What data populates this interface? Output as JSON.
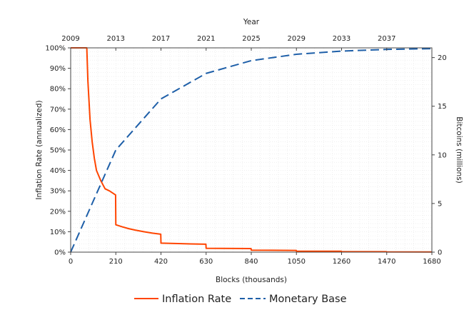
{
  "chart_data": {
    "type": "line",
    "x_axis_bottom": {
      "label": "Blocks (thousands)",
      "min": 0,
      "max": 1680,
      "ticks": [
        0,
        210,
        420,
        630,
        840,
        1050,
        1260,
        1470,
        1680
      ]
    },
    "x_axis_top": {
      "label": "Year",
      "ticks": [
        "2009",
        "2013",
        "2017",
        "2021",
        "2025",
        "2029",
        "2033",
        "2037"
      ]
    },
    "y_axis_left": {
      "label": "Inflation Rate (annualized)",
      "min": 0,
      "max": 100,
      "unit": "%",
      "ticks": [
        "0%",
        "10%",
        "20%",
        "30%",
        "40%",
        "50%",
        "60%",
        "70%",
        "80%",
        "90%",
        "100%"
      ]
    },
    "y_axis_right": {
      "label": "Bitcoins (millions)",
      "min": 0,
      "max": 21,
      "ticks": [
        0,
        5,
        10,
        15,
        20
      ]
    },
    "grid": true,
    "legend_position": "bottom",
    "series": [
      {
        "name": "Inflation Rate",
        "axis": "left",
        "color": "#ff4500",
        "style": "solid",
        "points": [
          [
            0,
            100
          ],
          [
            70,
            100
          ],
          [
            75,
            100
          ],
          [
            80,
            84
          ],
          [
            90,
            65
          ],
          [
            100,
            54
          ],
          [
            110,
            46
          ],
          [
            120,
            40
          ],
          [
            140,
            35
          ],
          [
            160,
            31
          ],
          [
            180,
            30
          ],
          [
            209,
            28
          ],
          [
            210,
            13.4
          ],
          [
            240,
            12.4
          ],
          [
            270,
            11.5
          ],
          [
            300,
            10.8
          ],
          [
            340,
            10.0
          ],
          [
            380,
            9.3
          ],
          [
            419,
            8.8
          ],
          [
            420,
            4.4
          ],
          [
            500,
            4.2
          ],
          [
            560,
            4.0
          ],
          [
            629,
            3.9
          ],
          [
            630,
            1.9
          ],
          [
            700,
            1.85
          ],
          [
            780,
            1.8
          ],
          [
            839,
            1.75
          ],
          [
            840,
            0.95
          ],
          [
            1049,
            0.85
          ],
          [
            1050,
            0.47
          ],
          [
            1259,
            0.43
          ],
          [
            1260,
            0.24
          ],
          [
            1469,
            0.22
          ],
          [
            1470,
            0.12
          ],
          [
            1680,
            0.11
          ]
        ]
      },
      {
        "name": "Monetary Base",
        "axis": "right",
        "color": "#1e5fa8",
        "style": "dashed",
        "points": [
          [
            0,
            0
          ],
          [
            210,
            10.5
          ],
          [
            420,
            15.75
          ],
          [
            630,
            18.375
          ],
          [
            840,
            19.6875
          ],
          [
            1050,
            20.34
          ],
          [
            1260,
            20.67
          ],
          [
            1470,
            20.84
          ],
          [
            1680,
            20.92
          ]
        ]
      }
    ]
  }
}
